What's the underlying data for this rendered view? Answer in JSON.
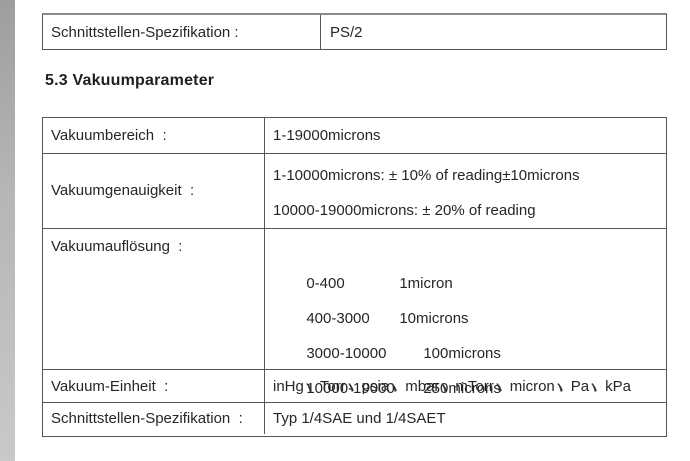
{
  "top_table": {
    "row": {
      "label": "Schnittstellen-Spezifikation :",
      "value": "PS/2"
    }
  },
  "heading": "5.3 Vakuumparameter",
  "spec_table": {
    "rows": {
      "bereich": {
        "label": "Vakuumbereich  :",
        "value": "1-19000microns"
      },
      "genauigkeit": {
        "label": "Vakuumgenauigkeit  :",
        "lines": [
          "1-10000microns: ± 10% of reading±10microns",
          "10000-19000microns: ± 20% of reading"
        ]
      },
      "aufloesung": {
        "label": "Vakuumauflösung  :",
        "lines": [
          {
            "range": "0-400",
            "value": "1micron"
          },
          {
            "range": "400-3000",
            "value": "10microns"
          },
          {
            "range": "3000-10000",
            "value": "100microns"
          },
          {
            "range": "10000-19000",
            "value": "250microns"
          }
        ]
      },
      "einheit": {
        "label": "Vakuum-Einheit  :",
        "units": [
          "inHg",
          "Torr",
          "psia",
          "mbar",
          "mTorr",
          "micron",
          "Pa",
          "kPa"
        ],
        "separator": "、"
      },
      "schnittstelle": {
        "label": "Schnittstellen-Spezifikation  :",
        "value": "Typ 1/4SAE und 1/4SAET"
      }
    }
  },
  "colors": {
    "text": "#262626",
    "border": "#555555",
    "page_edge": "#b5b5b5"
  }
}
